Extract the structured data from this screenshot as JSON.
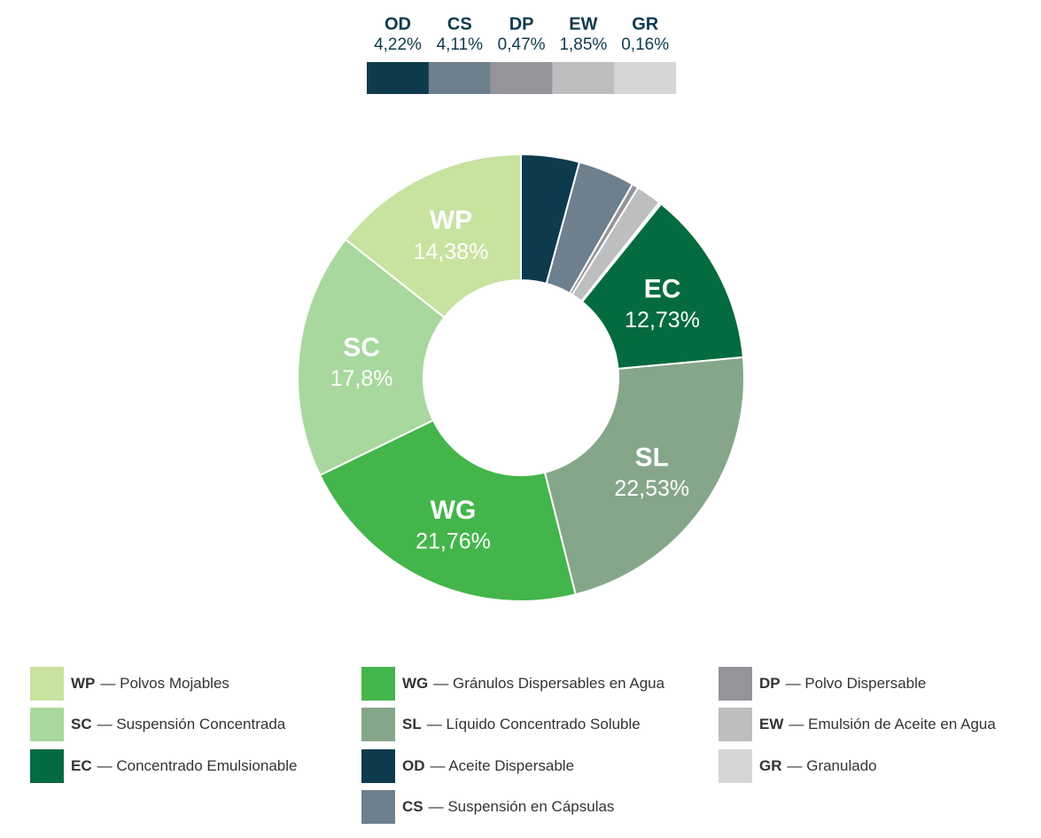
{
  "chart_data": {
    "type": "donut",
    "categories": [
      "OD",
      "CS",
      "DP",
      "EW",
      "GR",
      "EC",
      "SL",
      "WG",
      "SC",
      "WP"
    ],
    "descriptions": [
      "— Aceite Dispersable",
      "— Suspensión en Cápsulas",
      "— Polvo Dispersable",
      "— Emulsión de Aceite en Agua",
      "— Granulado",
      "— Concentrado Emulsionable",
      "— Líquido Concentrado Soluble",
      "— Gránulos Dispersables en Agua",
      "— Suspensión Concentrada",
      "— Polvos Mojables"
    ],
    "values": [
      4.22,
      4.11,
      0.47,
      1.85,
      0.16,
      12.73,
      22.53,
      21.76,
      17.8,
      14.38
    ],
    "value_labels": [
      "4,22%",
      "4,11%",
      "0,47%",
      "1,85%",
      "0,16%",
      "12,73%",
      "22,53%",
      "21,76%",
      "17,8%",
      "14,38%"
    ],
    "colors": [
      "#0e3a4e",
      "#6e7f8e",
      "#939598",
      "#bcbebf",
      "#d5d6d6",
      "#046b3e",
      "#86a68a",
      "#43b54b",
      "#a8d89d",
      "#c8e2a0"
    ]
  }
}
